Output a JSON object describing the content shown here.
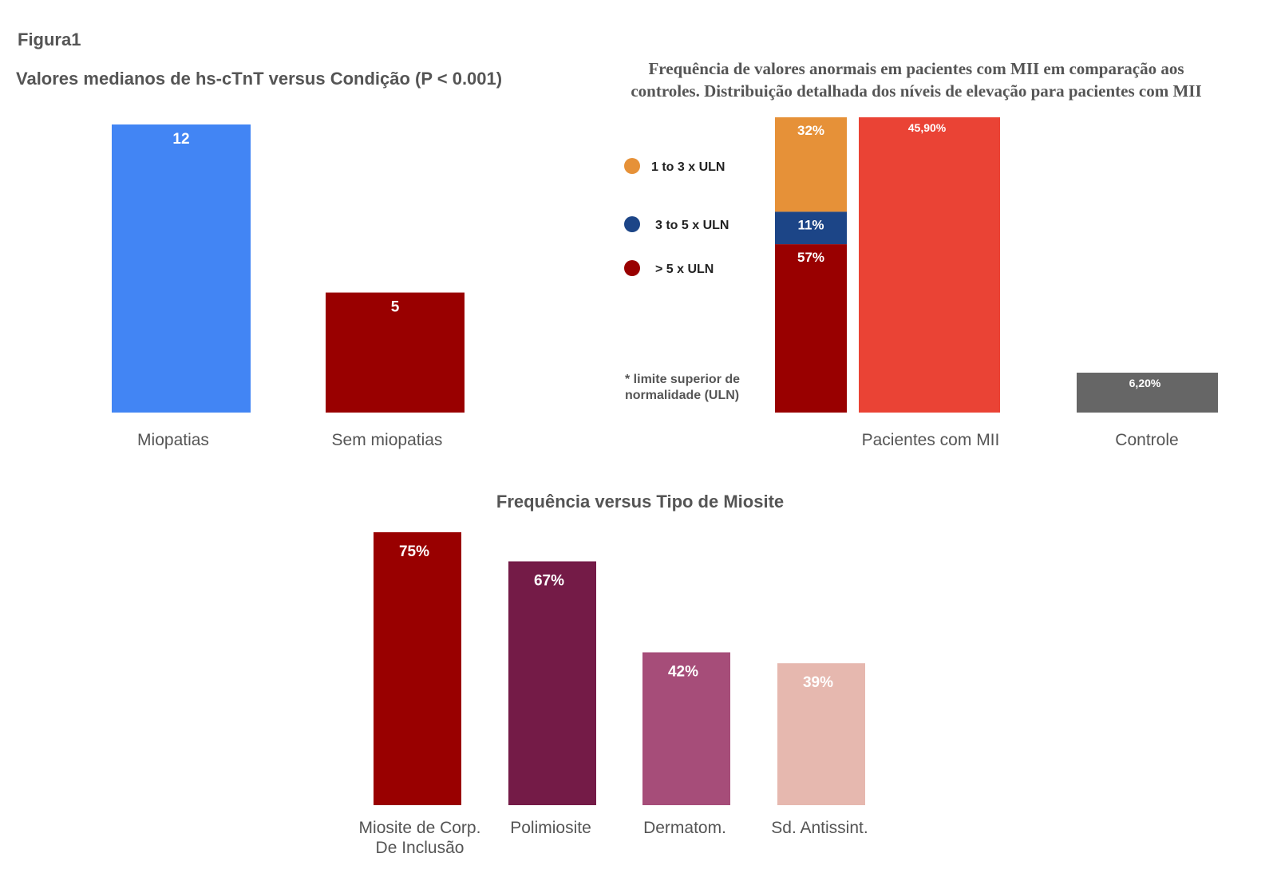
{
  "figure_label": "Figura1",
  "colors": {
    "text_dark": "#555555",
    "bar_label": "#ffffff"
  },
  "chart_data": [
    {
      "id": "chart1",
      "type": "bar",
      "title": "Valores medianos de hs-cTnT versus Condição (P < 0.001)",
      "categories": [
        "Miopatias",
        "Sem miopatias"
      ],
      "values": [
        12,
        5
      ],
      "value_labels": [
        "12",
        "5"
      ],
      "colors": [
        "#4285f4",
        "#990000"
      ],
      "ylim": [
        0,
        12
      ],
      "grid": false
    },
    {
      "id": "chart2",
      "type": "bar",
      "title_lines": [
        "Frequência de valores anormais em pacientes com MII em comparação aos",
        "controles. Distribuição detalhada dos níveis de elevação para pacientes com MII"
      ],
      "stacked_bar": {
        "series": [
          {
            "name": "1 to 3 x ULN",
            "value": 32,
            "label": "32%",
            "color": "#e69138"
          },
          {
            "name": "3 to 5 x ULN",
            "value": 11,
            "label": "11%",
            "color": "#1c4587"
          },
          {
            "name": "> 5 x ULN",
            "value": 57,
            "label": "57%",
            "color": "#990000"
          }
        ],
        "total": 100
      },
      "categories": [
        "Pacientes com MII",
        "Controle"
      ],
      "values": [
        45.9,
        6.2
      ],
      "value_labels": [
        "45,90%",
        "6,20%"
      ],
      "colors": [
        "#ea4335",
        "#666666"
      ],
      "ylim": [
        0,
        45.9
      ],
      "legend_position": "left",
      "footnote_lines": [
        "* limite superior de",
        "normalidade (ULN)"
      ],
      "grid": false
    },
    {
      "id": "chart3",
      "type": "bar",
      "title": "Frequência versus  Tipo de Miosite",
      "categories": [
        [
          "Miosite de Corp.",
          "De Inclusão"
        ],
        [
          "Polimiosite"
        ],
        [
          "Dermatom."
        ],
        [
          "Sd. Antissint."
        ]
      ],
      "values": [
        75,
        67,
        42,
        39
      ],
      "value_labels": [
        "75%",
        "67%",
        "42%",
        "39%"
      ],
      "colors": [
        "#990000",
        "#741b47",
        "#a64d79",
        "#e6b8af"
      ],
      "ylim": [
        0,
        75
      ],
      "grid": false
    }
  ]
}
